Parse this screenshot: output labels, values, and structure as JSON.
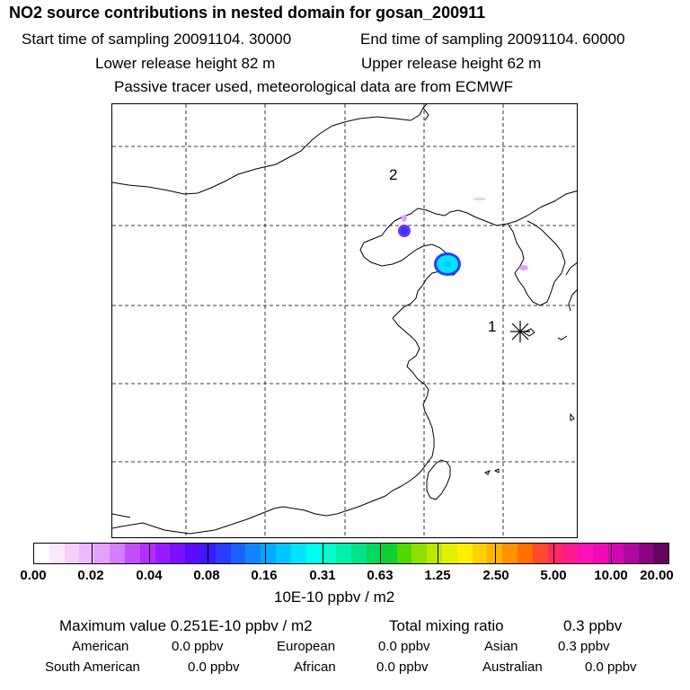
{
  "header": {
    "title": "NO2 source contributions in nested domain for gosan_200911",
    "start_label": "Start time of sampling 20091104. 30000",
    "end_label": "End time of sampling 20091104. 60000",
    "lower_label": "Lower release height   82 m",
    "upper_label": "Upper release height   62 m",
    "note": "Passive tracer used, meteorological data are from ECMWF"
  },
  "map": {
    "labels": {
      "site2": "2",
      "site1": "1"
    },
    "colors": {
      "border": "#000000",
      "grid": "#000000",
      "hotspot_fill": "#00e5ff",
      "hotspot_edge": "#2a3cff",
      "secondary": "#7a2cff",
      "faint": "#e8a0ff"
    }
  },
  "colorbar": {
    "ticks": [
      "0.00",
      "0.02",
      "0.04",
      "0.08",
      "0.16",
      "0.31",
      "0.63",
      "1.25",
      "2.50",
      "5.00",
      "10.00",
      "20.00"
    ],
    "units": "10E-10 ppbv / m2",
    "colors": [
      "#ffffff",
      "#fbe8ff",
      "#f5d0ff",
      "#eeb8ff",
      "#e6a0ff",
      "#d77cff",
      "#c44dff",
      "#b12eff",
      "#9a1aff",
      "#7a10ff",
      "#5a0aff",
      "#3c18ff",
      "#2a3cff",
      "#1a62ff",
      "#0f86ff",
      "#08a8ff",
      "#00c8ff",
      "#00e5ff",
      "#00ffee",
      "#00ffcc",
      "#00f2a8",
      "#00e488",
      "#00d860",
      "#10d030",
      "#50d800",
      "#8ee000",
      "#bce800",
      "#e0f000",
      "#fff000",
      "#ffd000",
      "#ffb200",
      "#ff9200",
      "#ff7000",
      "#ff4a30",
      "#ff2a60",
      "#ff1c90",
      "#ff10b4",
      "#f00ab8",
      "#d408b0",
      "#b006a0",
      "#8a0480",
      "#640260"
    ]
  },
  "summary": {
    "max_label": "Maximum value  0.251E-10 ppbv / m2",
    "total_label": "Total mixing ratio",
    "total_value": "0.3 ppbv",
    "american_label": "American",
    "american_value": "0.0 ppbv",
    "european_label": "European",
    "european_value": "0.0 ppbv",
    "asian_label": "Asian",
    "asian_value": "0.3 ppbv",
    "southamerican_label": "South American",
    "southamerican_value": "0.0 ppbv",
    "african_label": "African",
    "african_value": "0.0 ppbv",
    "australian_label": "Australian",
    "australian_value": "0.0 ppbv"
  }
}
